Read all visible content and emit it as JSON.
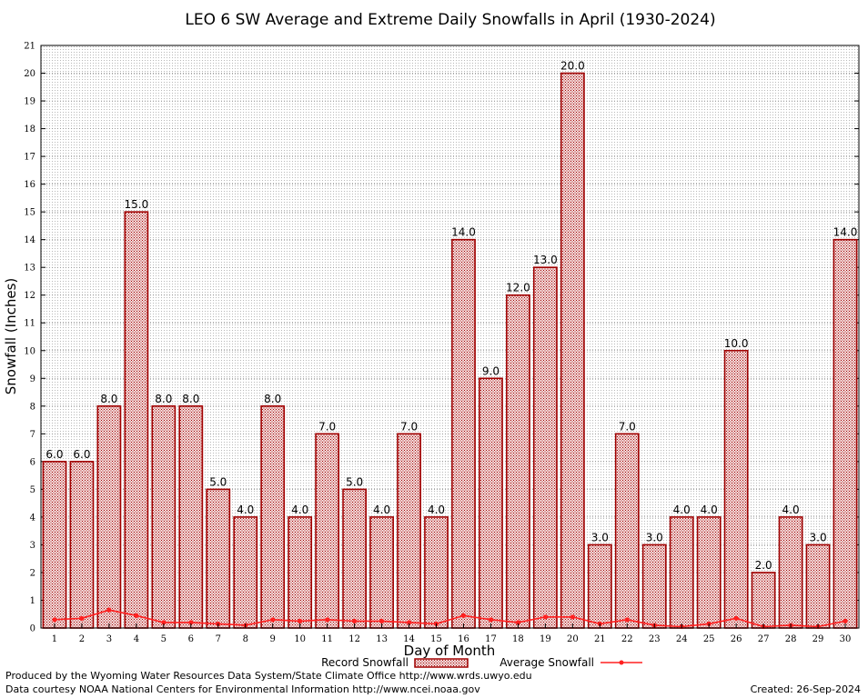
{
  "chart_data": {
    "type": "bar",
    "title": "LEO 6 SW Average and Extreme Daily Snowfalls in April (1930-2024)",
    "xlabel": "Day of Month",
    "ylabel": "Snowfall (Inches)",
    "ylim": [
      0,
      21
    ],
    "yticks": [
      0,
      1,
      2,
      3,
      4,
      5,
      6,
      7,
      8,
      9,
      10,
      11,
      12,
      13,
      14,
      15,
      16,
      17,
      18,
      19,
      20,
      21
    ],
    "grid": true,
    "legend_position": "bottom",
    "categories": [
      "1",
      "2",
      "3",
      "4",
      "5",
      "6",
      "7",
      "8",
      "9",
      "10",
      "11",
      "12",
      "13",
      "14",
      "15",
      "16",
      "17",
      "18",
      "19",
      "20",
      "21",
      "22",
      "23",
      "24",
      "25",
      "26",
      "27",
      "28",
      "29",
      "30"
    ],
    "series": [
      {
        "name": "Record Snowfall",
        "type": "bar",
        "color": "#a00000",
        "values": [
          6.0,
          6.0,
          8.0,
          15.0,
          8.0,
          8.0,
          5.0,
          4.0,
          8.0,
          4.0,
          7.0,
          5.0,
          4.0,
          7.0,
          4.0,
          14.0,
          9.0,
          12.0,
          13.0,
          20.0,
          3.0,
          7.0,
          3.0,
          4.0,
          4.0,
          10.0,
          2.0,
          4.0,
          3.0,
          14.0
        ],
        "labels": [
          "6.0",
          "6.0",
          "8.0",
          "15.0",
          "8.0",
          "8.0",
          "5.0",
          "4.0",
          "8.0",
          "4.0",
          "7.0",
          "5.0",
          "4.0",
          "7.0",
          "4.0",
          "14.0",
          "9.0",
          "12.0",
          "13.0",
          "20.0",
          "3.0",
          "7.0",
          "3.0",
          "4.0",
          "4.0",
          "10.0",
          "2.0",
          "4.0",
          "3.0",
          "14.0"
        ]
      },
      {
        "name": "Average Snowfall",
        "type": "line",
        "color": "#ff2020",
        "values": [
          0.3,
          0.35,
          0.65,
          0.45,
          0.2,
          0.2,
          0.15,
          0.1,
          0.3,
          0.25,
          0.3,
          0.25,
          0.25,
          0.2,
          0.15,
          0.45,
          0.3,
          0.2,
          0.4,
          0.4,
          0.15,
          0.3,
          0.1,
          0.05,
          0.15,
          0.35,
          0.05,
          0.1,
          0.05,
          0.25
        ]
      }
    ]
  },
  "footer": {
    "produced_by": "Produced by the Wyoming Water Resources Data System/State Climate Office http://www.wrds.uwyo.edu",
    "courtesy": "Data courtesy NOAA National Centers for Environmental Information http://www.ncei.noaa.gov",
    "created": "Created:  26-Sep-2024"
  }
}
